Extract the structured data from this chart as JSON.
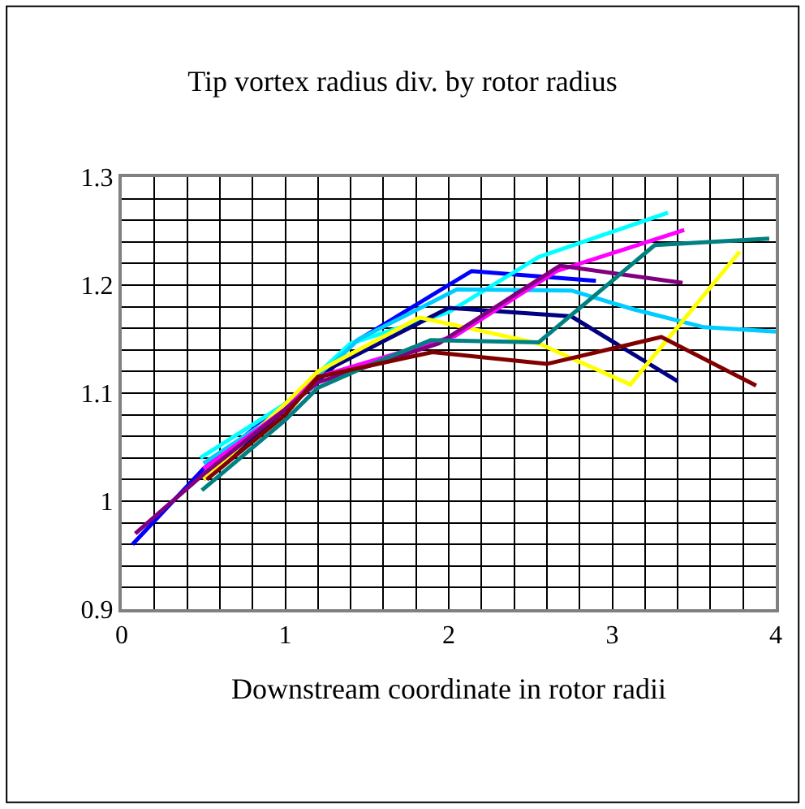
{
  "chart_data": {
    "type": "line",
    "title": "Tip vortex radius div. by rotor radius",
    "xlabel": "Downstream coordinate in rotor radii",
    "xlim": [
      0,
      4
    ],
    "ylim": [
      0.9,
      1.3
    ],
    "xticks": [
      0,
      {
        "value": 0.2,
        "label": null
      },
      {
        "value": 0.4,
        "label": null
      },
      {
        "value": 0.6,
        "label": null
      },
      {
        "value": 0.8,
        "label": null
      },
      1,
      {
        "value": 1.2,
        "label": null
      },
      {
        "value": 1.4,
        "label": null
      },
      {
        "value": 1.6,
        "label": null
      },
      {
        "value": 1.8,
        "label": null
      },
      2,
      {
        "value": 2.2,
        "label": null
      },
      {
        "value": 2.4,
        "label": null
      },
      {
        "value": 2.6,
        "label": null
      },
      {
        "value": 2.8,
        "label": null
      },
      3,
      {
        "value": 3.2,
        "label": null
      },
      {
        "value": 3.4,
        "label": null
      },
      {
        "value": 3.6,
        "label": null
      },
      {
        "value": 3.8,
        "label": null
      },
      4
    ],
    "yticks": [
      0.9,
      {
        "value": 0.92,
        "label": null
      },
      {
        "value": 0.94,
        "label": null
      },
      {
        "value": 0.96,
        "label": null
      },
      {
        "value": 0.98,
        "label": null
      },
      {
        "value": 1.0,
        "label": "1"
      },
      {
        "value": 1.02,
        "label": null
      },
      {
        "value": 1.04,
        "label": null
      },
      {
        "value": 1.06,
        "label": null
      },
      {
        "value": 1.08,
        "label": null
      },
      1.1,
      {
        "value": 1.12,
        "label": null
      },
      {
        "value": 1.14,
        "label": null
      },
      {
        "value": 1.16,
        "label": null
      },
      {
        "value": 1.18,
        "label": null
      },
      1.2,
      {
        "value": 1.22,
        "label": null
      },
      {
        "value": 1.24,
        "label": null
      },
      {
        "value": 1.26,
        "label": null
      },
      {
        "value": 1.28,
        "label": null
      },
      1.3
    ],
    "grid": true,
    "marker": "none",
    "line_style": "solid",
    "series": [
      {
        "color": "#0000ff",
        "x": [
          0.066,
          0.5,
          1.0,
          1.4,
          2.14,
          2.9
        ],
        "values": [
          0.96,
          1.03,
          1.09,
          1.145,
          1.213,
          1.204
        ]
      },
      {
        "color": "#00ffff",
        "x": [
          0.48,
          1.0,
          1.4,
          2.0,
          2.55,
          3.34
        ],
        "values": [
          1.04,
          1.09,
          1.146,
          1.175,
          1.226,
          1.267
        ]
      },
      {
        "color": "#00ccff",
        "x": [
          0.5,
          1.0,
          1.45,
          2.05,
          2.75,
          3.12,
          3.56,
          4.0
        ],
        "values": [
          1.035,
          1.085,
          1.15,
          1.196,
          1.195,
          1.178,
          1.161,
          1.157
        ]
      },
      {
        "color": "#000080",
        "x": [
          0.5,
          1.0,
          1.3,
          2.0,
          2.75,
          3.4
        ],
        "values": [
          1.02,
          1.085,
          1.125,
          1.179,
          1.171,
          1.111
        ]
      },
      {
        "color": "#ffff00",
        "x": [
          0.5,
          1.0,
          1.2,
          1.82,
          2.55,
          3.11,
          3.78
        ],
        "values": [
          1.02,
          1.09,
          1.12,
          1.17,
          1.146,
          1.108,
          1.231
        ]
      },
      {
        "color": "#ff00ff",
        "x": [
          0.5,
          1.0,
          1.2,
          2.04,
          2.66,
          3.44
        ],
        "values": [
          1.03,
          1.085,
          1.115,
          1.153,
          1.213,
          1.251
        ]
      },
      {
        "color": "#800080",
        "x": [
          0.083,
          0.5,
          1.0,
          1.2,
          1.94,
          2.68,
          3.43
        ],
        "values": [
          0.97,
          1.025,
          1.085,
          1.11,
          1.146,
          1.218,
          1.202
        ]
      },
      {
        "color": "#008080",
        "x": [
          0.49,
          1.0,
          1.2,
          1.5,
          1.89,
          2.55,
          3.26,
          3.96
        ],
        "values": [
          1.01,
          1.075,
          1.105,
          1.125,
          1.149,
          1.147,
          1.237,
          1.243
        ]
      },
      {
        "color": "#800000",
        "x": [
          0.52,
          1.0,
          1.2,
          1.9,
          2.6,
          3.3,
          3.88
        ],
        "values": [
          1.02,
          1.08,
          1.115,
          1.138,
          1.127,
          1.152,
          1.107
        ]
      }
    ]
  }
}
